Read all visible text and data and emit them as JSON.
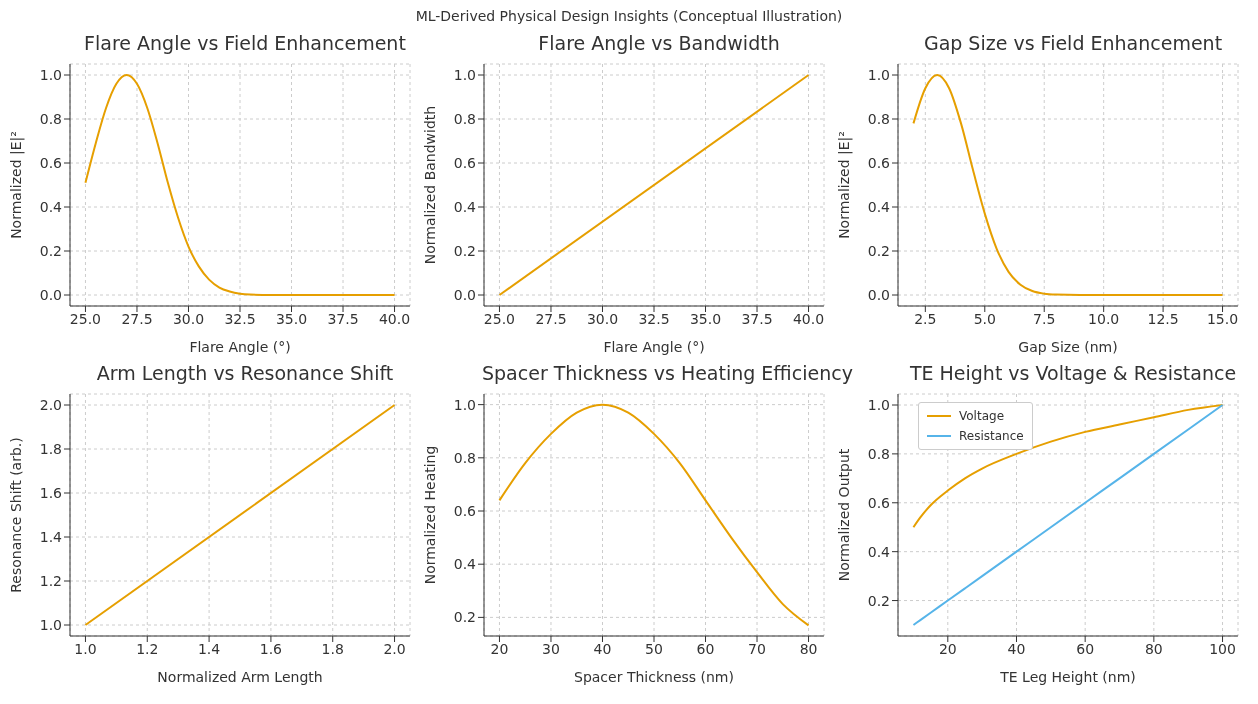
{
  "chart_data": [
    {
      "type": "line",
      "annotations": [
        "ML-Derived Physical Design Insights (Conceptual Illustration)"
      ],
      "title": "Flare Angle vs Field Enhancement",
      "xlabel": "Flare Angle (°)",
      "ylabel": "Normalized |E|²",
      "grid": true,
      "x": [
        25,
        25.5,
        26,
        26.5,
        27,
        27.5,
        28,
        28.5,
        29,
        29.5,
        30,
        30.5,
        31,
        31.5,
        32,
        32.5,
        33,
        34,
        36,
        38,
        40
      ],
      "series": [
        {
          "color": "#e69f00",
          "values": [
            0.51,
            0.69,
            0.85,
            0.96,
            1.0,
            0.96,
            0.85,
            0.69,
            0.51,
            0.35,
            0.22,
            0.13,
            0.07,
            0.034,
            0.016,
            0.006,
            0.002,
            0,
            0,
            0,
            0
          ]
        }
      ],
      "xlim": [
        24.25,
        40.75
      ],
      "xticks": [
        {
          "value": 25,
          "label": "25.0"
        },
        27.5,
        {
          "value": 30,
          "label": "30.0"
        },
        32.5,
        {
          "value": 35,
          "label": "35.0"
        },
        37.5,
        {
          "value": 40,
          "label": "40.0"
        }
      ],
      "ylim": [
        -0.05,
        1.05
      ],
      "yticks": [
        {
          "value": 0,
          "label": "0.0"
        },
        0.2,
        0.4,
        0.6,
        0.8,
        {
          "value": 1,
          "label": "1.0"
        }
      ]
    },
    {
      "type": "line",
      "title": "Flare Angle vs Bandwidth",
      "xlabel": "Flare Angle (°)",
      "ylabel": "Normalized Bandwidth",
      "grid": true,
      "x": [
        25,
        40
      ],
      "series": [
        {
          "color": "#e69f00",
          "values": [
            0,
            1
          ]
        }
      ],
      "xlim": [
        24.25,
        40.75
      ],
      "xticks": [
        {
          "value": 25,
          "label": "25.0"
        },
        27.5,
        {
          "value": 30,
          "label": "30.0"
        },
        32.5,
        {
          "value": 35,
          "label": "35.0"
        },
        37.5,
        {
          "value": 40,
          "label": "40.0"
        }
      ],
      "ylim": [
        -0.05,
        1.05
      ],
      "yticks": [
        {
          "value": 0,
          "label": "0.0"
        },
        0.2,
        0.4,
        0.6,
        0.8,
        {
          "value": 1,
          "label": "1.0"
        }
      ]
    },
    {
      "type": "line",
      "title": "Gap Size vs Field Enhancement",
      "xlabel": "Gap Size (nm)",
      "ylabel": "Normalized |E|²",
      "grid": true,
      "x": [
        2,
        2.5,
        3,
        3.5,
        4,
        4.5,
        5,
        5.5,
        6,
        6.5,
        7,
        7.5,
        8,
        9,
        11,
        13,
        15
      ],
      "series": [
        {
          "color": "#e69f00",
          "values": [
            0.78,
            0.94,
            1.0,
            0.94,
            0.78,
            0.57,
            0.37,
            0.21,
            0.105,
            0.047,
            0.018,
            0.006,
            0.002,
            0,
            0,
            0,
            0
          ]
        }
      ],
      "xlim": [
        1.35,
        15.65
      ],
      "xticks": [
        2.5,
        {
          "value": 5,
          "label": "5.0"
        },
        7.5,
        {
          "value": 10,
          "label": "10.0"
        },
        12.5,
        {
          "value": 15,
          "label": "15.0"
        }
      ],
      "ylim": [
        -0.05,
        1.05
      ],
      "yticks": [
        {
          "value": 0,
          "label": "0.0"
        },
        0.2,
        0.4,
        0.6,
        0.8,
        {
          "value": 1,
          "label": "1.0"
        }
      ]
    },
    {
      "type": "line",
      "title": "Arm Length vs Resonance Shift",
      "xlabel": "Normalized Arm Length",
      "ylabel": "Resonance Shift (arb.)",
      "grid": true,
      "x": [
        1,
        2
      ],
      "series": [
        {
          "color": "#e69f00",
          "values": [
            1,
            2
          ]
        }
      ],
      "xlim": [
        0.95,
        2.05
      ],
      "xticks": [
        {
          "value": 1,
          "label": "1.0"
        },
        1.2,
        1.4,
        1.6,
        1.8,
        {
          "value": 2,
          "label": "2.0"
        }
      ],
      "ylim": [
        0.95,
        2.05
      ],
      "yticks": [
        {
          "value": 1,
          "label": "1.0"
        },
        1.2,
        1.4,
        1.6,
        1.8,
        {
          "value": 2,
          "label": "2.0"
        }
      ]
    },
    {
      "type": "line",
      "title": "Spacer Thickness vs Heating Efficiency",
      "xlabel": "Spacer Thickness (nm)",
      "ylabel": "Normalized Heating",
      "grid": true,
      "x": [
        20,
        25,
        30,
        35,
        40,
        45,
        50,
        55,
        60,
        65,
        70,
        75,
        80
      ],
      "series": [
        {
          "color": "#e69f00",
          "values": [
            0.64,
            0.78,
            0.89,
            0.97,
            1.0,
            0.97,
            0.89,
            0.78,
            0.64,
            0.5,
            0.37,
            0.25,
            0.17
          ]
        }
      ],
      "xlim": [
        17,
        83
      ],
      "xticks": [
        20,
        30,
        40,
        50,
        60,
        70,
        80
      ],
      "ylim": [
        0.13,
        1.04
      ],
      "yticks": [
        0.2,
        0.4,
        0.6,
        0.8,
        {
          "value": 1,
          "label": "1.0"
        }
      ]
    },
    {
      "type": "line",
      "title": "TE Height vs Voltage & Resistance",
      "xlabel": "TE Leg Height (nm)",
      "ylabel": "Normalized Output",
      "grid": true,
      "legend": "top left",
      "x": [
        10,
        12,
        15,
        20,
        25,
        30,
        40,
        50,
        60,
        70,
        80,
        90,
        100
      ],
      "series": [
        {
          "name": "Voltage",
          "color": "#e69f00",
          "values": [
            0.5,
            0.54,
            0.59,
            0.65,
            0.7,
            0.74,
            0.8,
            0.85,
            0.89,
            0.92,
            0.95,
            0.98,
            1.0
          ]
        },
        {
          "name": "Resistance",
          "color": "#56b4e9",
          "values": [
            0.1,
            0.12,
            0.15,
            0.2,
            0.25,
            0.3,
            0.4,
            0.5,
            0.6,
            0.7,
            0.8,
            0.9,
            1.0
          ]
        }
      ],
      "xlim": [
        5.5,
        104.5
      ],
      "xticks": [
        20,
        40,
        60,
        80,
        100
      ],
      "ylim": [
        0.055,
        1.045
      ],
      "yticks": [
        0.2,
        0.4,
        0.6,
        0.8,
        {
          "value": 1,
          "label": "1.0"
        }
      ]
    }
  ]
}
